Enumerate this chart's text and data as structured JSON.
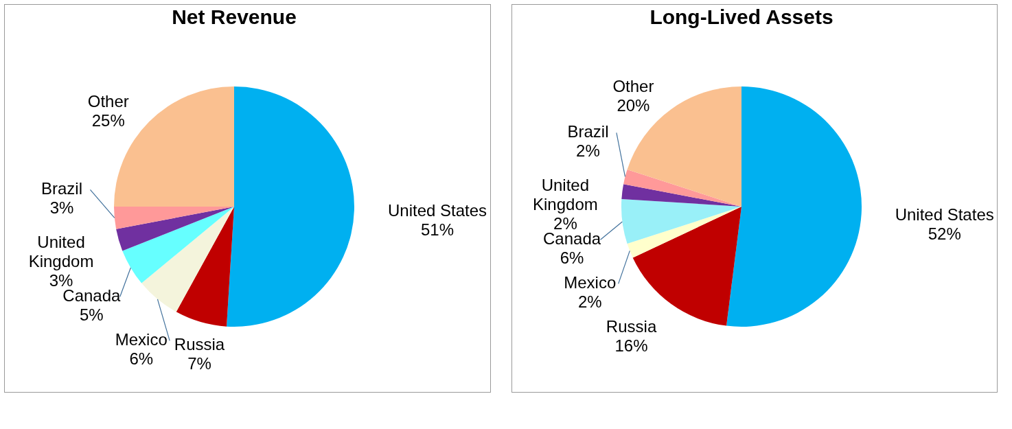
{
  "chart_data": [
    {
      "type": "pie",
      "title": "Net Revenue",
      "categories": [
        "United States",
        "Russia",
        "Mexico",
        "Canada",
        "United Kingdom",
        "Brazil",
        "Other"
      ],
      "values": [
        51,
        7,
        6,
        5,
        3,
        3,
        25
      ],
      "value_labels": [
        "51%",
        "7%",
        "6%",
        "5%",
        "3%",
        "3%",
        "25%"
      ],
      "colors": [
        "#00b0f0",
        "#c00000",
        "#f4f4dc",
        "#66ffff",
        "#7030a0",
        "#ff9999",
        "#fac090"
      ]
    },
    {
      "type": "pie",
      "title": "Long-Lived Assets",
      "categories": [
        "United States",
        "Russia",
        "Mexico",
        "Canada",
        "United Kingdom",
        "Brazil",
        "Other"
      ],
      "values": [
        52,
        16,
        2,
        6,
        2,
        2,
        20
      ],
      "value_labels": [
        "52%",
        "16%",
        "2%",
        "6%",
        "2%",
        "2%",
        "20%"
      ],
      "colors": [
        "#00b0f0",
        "#c00000",
        "#ffffcc",
        "#99f0f8",
        "#7030a0",
        "#ff9999",
        "#fac090"
      ]
    }
  ]
}
